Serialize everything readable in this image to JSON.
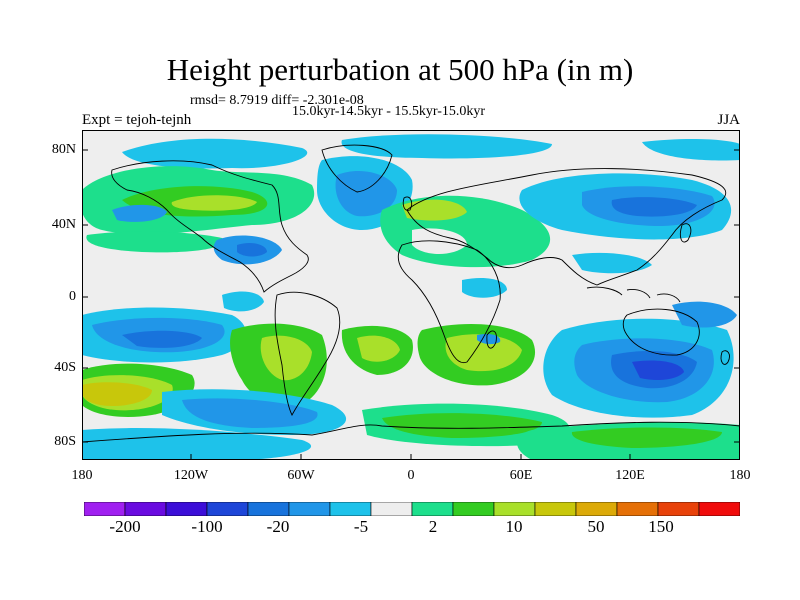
{
  "title": "Height perturbation at 500 hPa (in m)",
  "stats": "rmsd= 8.7919 diff= -2.301e-08",
  "period": "15.0kyr-14.5kyr - 15.5kyr-15.0kyr",
  "experiment": "Expt = tejoh-tejnh",
  "season": "JJA",
  "lat_labels": [
    "80N",
    "40N",
    "0",
    "40S",
    "80S"
  ],
  "lon_labels": [
    "180",
    "120W",
    "60W",
    "0",
    "60E",
    "120E",
    "180"
  ],
  "colorbar": {
    "colors": [
      "#a020f0",
      "#6a0be0",
      "#3c0ed8",
      "#1e46d8",
      "#1873dc",
      "#2196e8",
      "#1ec2ea",
      "#eeeeee",
      "#1ddf8c",
      "#33cc22",
      "#a9e02a",
      "#c8c70b",
      "#dcaa08",
      "#e57007",
      "#e8420a",
      "#f00c0c"
    ],
    "labels": [
      "-200",
      "-100",
      "-20",
      "-5",
      "2",
      "10",
      "50",
      "150"
    ]
  }
}
